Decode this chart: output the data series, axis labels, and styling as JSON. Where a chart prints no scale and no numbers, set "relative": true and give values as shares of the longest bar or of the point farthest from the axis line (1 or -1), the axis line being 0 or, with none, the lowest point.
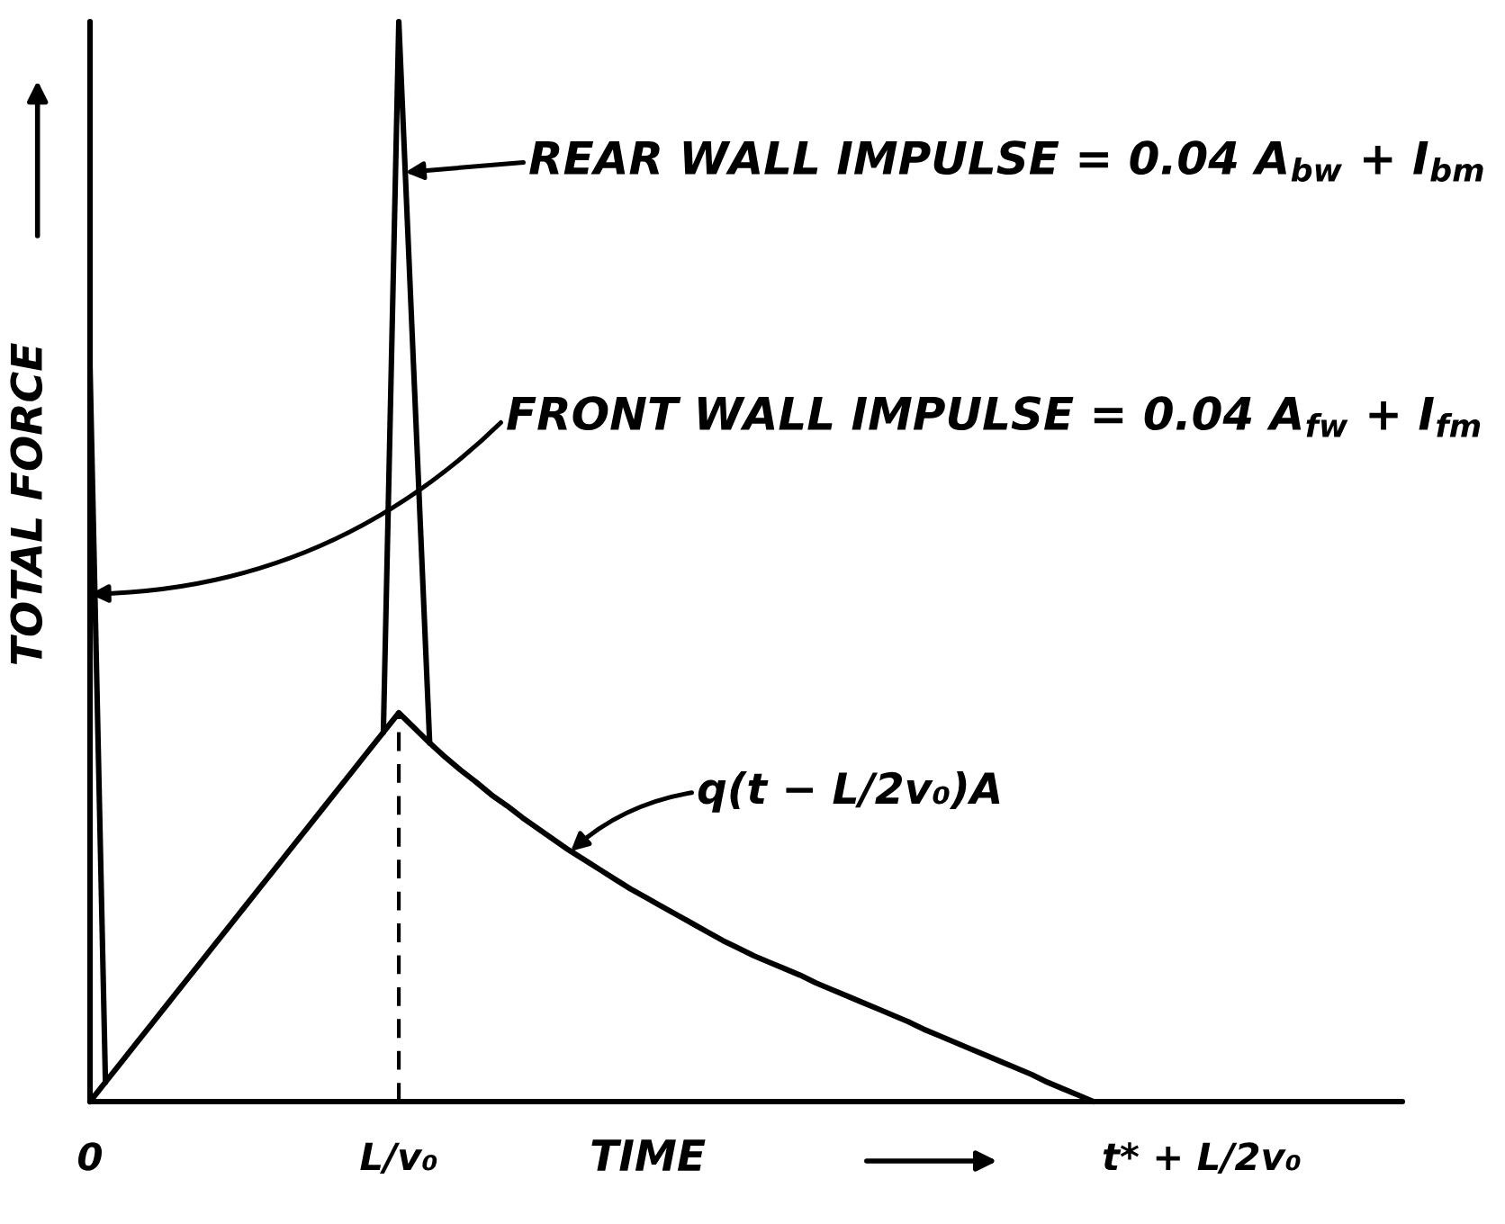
{
  "chart_data": {
    "type": "line",
    "relative": true,
    "xlabel": "TIME",
    "ylabel": "TOTAL FORCE",
    "tick_labels": "x",
    "categories": [
      "0",
      null,
      null,
      null,
      null,
      null,
      null,
      null,
      null,
      null,
      null,
      null,
      null,
      null,
      null,
      null,
      null,
      null,
      null,
      null,
      "L/v₀",
      null,
      null,
      null,
      null,
      null,
      null,
      null,
      null,
      null,
      null,
      null,
      null,
      null,
      null,
      null,
      null,
      null,
      null,
      null,
      null,
      null,
      null,
      null,
      null,
      null,
      null,
      null,
      null,
      null,
      null,
      null,
      null,
      null,
      null,
      null,
      null,
      null,
      null,
      null,
      null,
      null,
      null,
      null,
      null,
      null,
      null,
      null,
      null,
      null,
      null,
      null,
      "t* + L/2v₀",
      null,
      null,
      null,
      null,
      null,
      null,
      null,
      null,
      null,
      null,
      null,
      null,
      null
    ],
    "series": [
      {
        "color": "#000000",
        "values": [
          0,
          0.018,
          0.036,
          0.054,
          0.072,
          0.09,
          0.108,
          0.126,
          0.144,
          0.162,
          0.18,
          0.198,
          0.216,
          0.234,
          0.252,
          0.27,
          0.288,
          0.306,
          0.324,
          0.342,
          0.36,
          0.346,
          0.332,
          0.319,
          0.307,
          0.296,
          0.284,
          0.274,
          0.263,
          0.253,
          0.243,
          0.233,
          0.224,
          0.215,
          0.206,
          0.197,
          0.189,
          0.181,
          0.173,
          0.165,
          0.157,
          0.149,
          0.142,
          0.135,
          0.129,
          0.123,
          0.117,
          0.11,
          0.104,
          0.098,
          0.092,
          0.086,
          0.08,
          0.074,
          0.067,
          0.061,
          0.055,
          0.049,
          0.043,
          0.037,
          0.031,
          0.025,
          0.018,
          0.012,
          0.006,
          0,
          null,
          null,
          null,
          null,
          null,
          null,
          null,
          null,
          null,
          null,
          null,
          null,
          null,
          null,
          null,
          null,
          null,
          null,
          null,
          null
        ]
      },
      {
        "color": "#000000",
        "values": [
          0.68,
          0.018,
          null,
          null,
          null,
          null,
          null,
          null,
          null,
          null,
          null,
          null,
          null,
          null,
          null,
          null,
          null,
          null,
          null,
          null,
          null,
          null,
          null,
          null,
          null,
          null,
          null,
          null,
          null,
          null,
          null,
          null,
          null,
          null,
          null,
          null,
          null,
          null,
          null,
          null,
          null,
          null,
          null,
          null,
          null,
          null,
          null,
          null,
          null,
          null,
          null,
          null,
          null,
          null,
          null,
          null,
          null,
          null,
          null,
          null,
          null,
          null,
          null,
          null,
          null,
          null,
          null,
          null,
          null,
          null,
          null,
          null,
          null,
          null,
          null,
          null,
          null,
          null,
          null,
          null,
          null,
          null,
          null,
          null,
          null,
          null
        ]
      },
      {
        "color": "#000000",
        "values": [
          null,
          null,
          null,
          null,
          null,
          null,
          null,
          null,
          null,
          null,
          null,
          null,
          null,
          null,
          null,
          null,
          null,
          null,
          null,
          0.342,
          1,
          0.666,
          0.332,
          null,
          null,
          null,
          null,
          null,
          null,
          null,
          null,
          null,
          null,
          null,
          null,
          null,
          null,
          null,
          null,
          null,
          null,
          null,
          null,
          null,
          null,
          null,
          null,
          null,
          null,
          null,
          null,
          null,
          null,
          null,
          null,
          null,
          null,
          null,
          null,
          null,
          null,
          null,
          null,
          null,
          null,
          null,
          null,
          null,
          null,
          null,
          null,
          null,
          null,
          null,
          null,
          null,
          null,
          null,
          null,
          null,
          null,
          null,
          null,
          null,
          null,
          null
        ]
      }
    ],
    "ref_lines": [
      {
        "axis": "x",
        "value": "L/v₀",
        "color": "#000000",
        "line_style": "dashed"
      }
    ],
    "annotations": [
      {
        "text": "REAR WALL IMPULSE = 0.04 A$_{bw}$ + I$_{bm}$",
        "x": "L/v₀",
        "y": 0.86
      },
      {
        "text": "FRONT WALL IMPULSE = 0.04 A$_{fw}$ + I$_{fm}$",
        "x": "0",
        "y": 0.47
      },
      "q(t − L/2v₀)A"
    ]
  }
}
